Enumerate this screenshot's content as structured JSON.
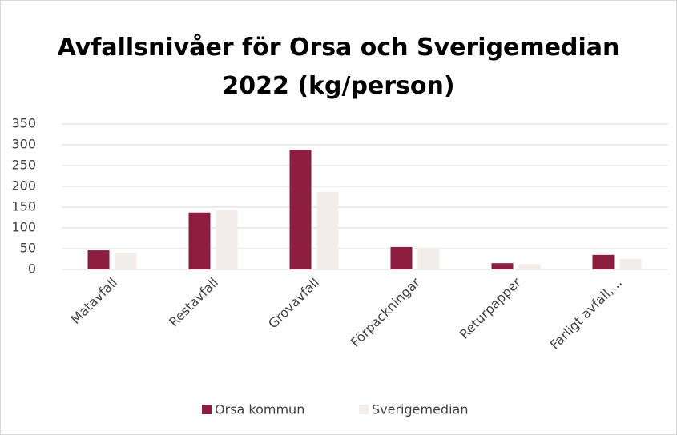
{
  "chart_data": {
    "type": "bar",
    "title": "Avfallsnivåer för Orsa och Sverigemedian 2022 (kg/person)",
    "categories": [
      "Matavfall",
      "Restavfall",
      "Grovavfall",
      "Förpackningar",
      "Returpapper",
      "Farligt avfall,..."
    ],
    "series": [
      {
        "name": "Orsa kommun",
        "color": "#8b1e3f",
        "values": [
          46,
          137,
          288,
          54,
          15,
          35
        ]
      },
      {
        "name": "Sverigemedian",
        "color": "#f2ede9",
        "values": [
          40,
          142,
          187,
          52,
          13,
          25
        ]
      }
    ],
    "ylim": [
      0,
      350
    ],
    "yticks": [
      0,
      50,
      100,
      150,
      200,
      250,
      300,
      350
    ],
    "grid": true,
    "legend": "bottom"
  }
}
